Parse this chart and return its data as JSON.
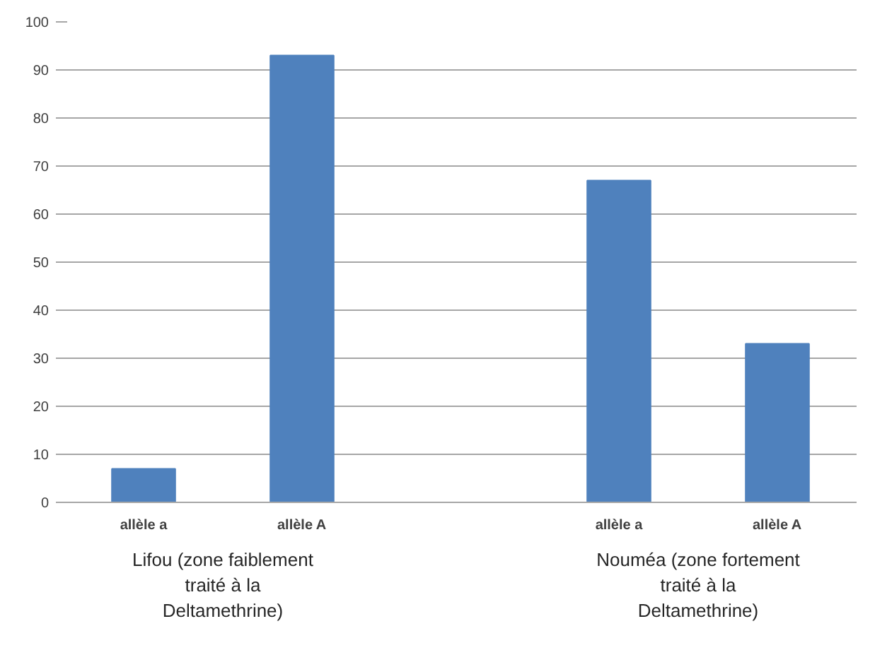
{
  "chart_data": {
    "type": "bar",
    "categories": [
      "allèle a",
      "allèle A",
      null,
      "allèle a",
      "allèle A"
    ],
    "values": [
      7,
      93,
      null,
      67,
      33
    ],
    "color": "#4f81bd",
    "ylim": [
      0,
      100
    ],
    "yticks": [
      0,
      10,
      20,
      30,
      40,
      50,
      60,
      70,
      80,
      90,
      100
    ],
    "grid": "y",
    "annotations": [
      "Lifou (zone faiblement traité à la Deltamethrine)",
      "Nouméa (zone fortement traité à la Deltamethrine)"
    ]
  }
}
